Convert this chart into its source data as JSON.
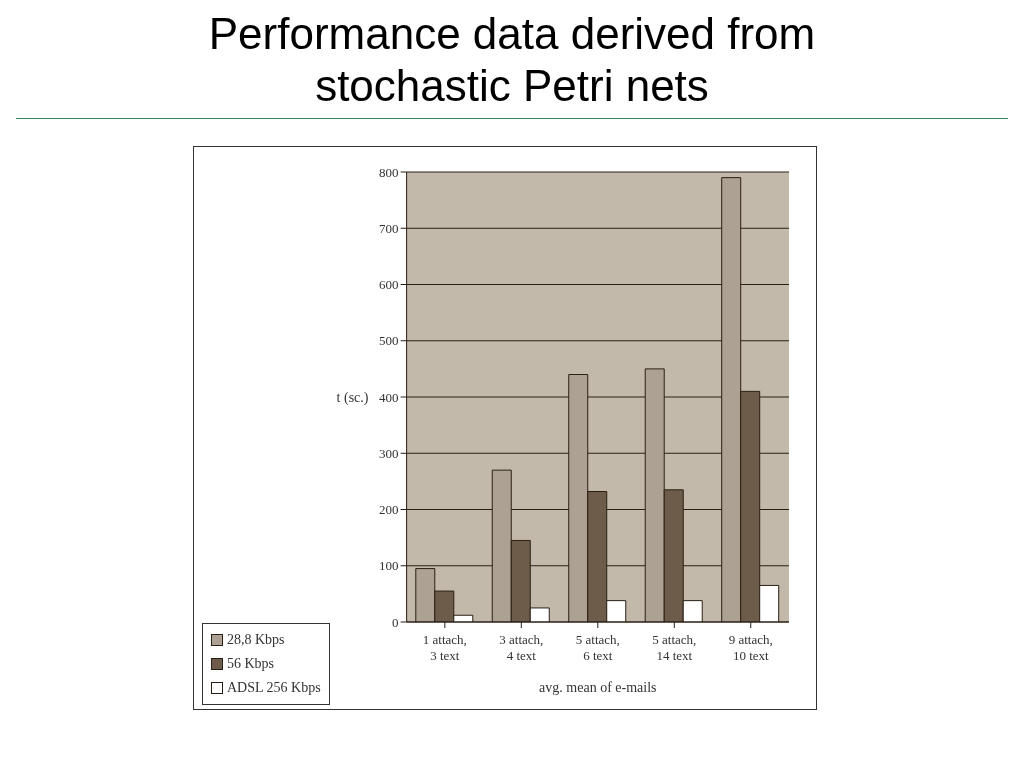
{
  "chart_data": {
    "type": "bar",
    "title": "Performance data derived from stochastic Petri nets",
    "xlabel": "avg. mean of e-mails",
    "ylabel": "t (sc.)",
    "categories": [
      "1 attach,\n3 text",
      "3 attach,\n4 text",
      "5 attach,\n6 text",
      "5 attach,\n14 text",
      "9 attach,\n10 text"
    ],
    "series": [
      {
        "name": "28,8 Kbps",
        "color": "#ada193",
        "values": [
          95,
          270,
          440,
          450,
          790
        ]
      },
      {
        "name": "56 Kbps",
        "color": "#6e5c4a",
        "values": [
          55,
          145,
          232,
          235,
          410
        ]
      },
      {
        "name": "ADSL 256 Kbps",
        "color": "#ffffff",
        "values": [
          12,
          25,
          38,
          38,
          65
        ]
      }
    ],
    "ylim": [
      0,
      800
    ],
    "yticks": [
      0,
      100,
      200,
      300,
      400,
      500,
      600,
      700,
      800
    ],
    "grid": "y",
    "legend": "bottom left"
  }
}
